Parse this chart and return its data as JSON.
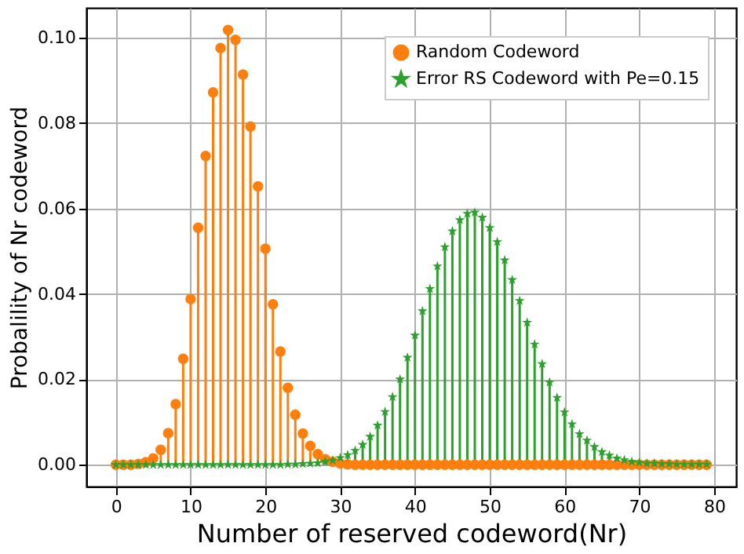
{
  "chart_data": {
    "type": "lollipop",
    "xlabel": "Number of reserved codeword(Nr)",
    "ylabel": "Probalility of Nr codeword",
    "x": [
      0,
      1,
      2,
      3,
      4,
      5,
      6,
      7,
      8,
      9,
      10,
      11,
      12,
      13,
      14,
      15,
      16,
      17,
      18,
      19,
      20,
      21,
      22,
      23,
      24,
      25,
      26,
      27,
      28,
      29,
      30,
      31,
      32,
      33,
      34,
      35,
      36,
      37,
      38,
      39,
      40,
      41,
      42,
      43,
      44,
      45,
      46,
      47,
      48,
      49,
      50,
      51,
      52,
      53,
      54,
      55,
      56,
      57,
      58,
      59,
      60,
      61,
      62,
      63,
      64,
      65,
      66,
      67,
      68,
      69,
      70,
      71,
      72,
      73,
      74,
      75,
      76,
      77,
      78,
      79
    ],
    "series": [
      {
        "name": "Random Codeword",
        "color": "#ff7f0e",
        "marker": "circle",
        "values": [
          0,
          0,
          0,
          0.0002,
          0.0006,
          0.0015,
          0.0035,
          0.0074,
          0.0142,
          0.0248,
          0.0388,
          0.0555,
          0.0723,
          0.0872,
          0.0976,
          0.1018,
          0.0995,
          0.0914,
          0.0792,
          0.0652,
          0.0506,
          0.0376,
          0.0265,
          0.018,
          0.0117,
          0.0073,
          0.0044,
          0.0025,
          0.0013,
          0.0007,
          0.0003,
          0.0001,
          0,
          0,
          0,
          0,
          0,
          0,
          0,
          0,
          0,
          0,
          0,
          0,
          0,
          0,
          0,
          0,
          0,
          0,
          0,
          0,
          0,
          0,
          0,
          0,
          0,
          0,
          0,
          0,
          0,
          0,
          0,
          0,
          0,
          0,
          0,
          0,
          0,
          0,
          0,
          0,
          0,
          0,
          0,
          0,
          0,
          0,
          0,
          0
        ]
      },
      {
        "name": "Error RS Codeword with Pe=0.15",
        "color": "#2ca02c",
        "marker": "star",
        "values": [
          0,
          0,
          0,
          0,
          0,
          0,
          0,
          0,
          0,
          0,
          0,
          0,
          0,
          0,
          0,
          0,
          0,
          0,
          0,
          0,
          0,
          0,
          0,
          0.0001,
          0.0001,
          0.0002,
          0.0003,
          0.0004,
          0.0007,
          0.001,
          0.0016,
          0.0023,
          0.0033,
          0.0047,
          0.0066,
          0.0092,
          0.0124,
          0.0159,
          0.02,
          0.0251,
          0.0303,
          0.036,
          0.0412,
          0.0465,
          0.051,
          0.0547,
          0.0573,
          0.0588,
          0.0591,
          0.0579,
          0.0555,
          0.0522,
          0.0479,
          0.0433,
          0.0384,
          0.0333,
          0.0282,
          0.0236,
          0.0193,
          0.0157,
          0.0123,
          0.0095,
          0.0072,
          0.0057,
          0.0042,
          0.003,
          0.0022,
          0.0015,
          0.0011,
          0.0007,
          0.0005,
          0.0003,
          0.0003,
          0.0002,
          0.0002,
          0.0001,
          0.0001,
          0.0001,
          0.0001,
          0.0001
        ]
      }
    ],
    "xlim": [
      -3.95,
      82.95
    ],
    "xticks": [
      0,
      10,
      20,
      30,
      40,
      50,
      60,
      70,
      80
    ],
    "ylim": [
      -0.0051,
      0.107
    ],
    "yticks": [
      {
        "value": 0,
        "label": "0.00"
      },
      {
        "value": 0.02,
        "label": "0.02"
      },
      {
        "value": 0.04,
        "label": "0.04"
      },
      {
        "value": 0.06,
        "label": "0.06"
      },
      {
        "value": 0.08,
        "label": "0.08"
      },
      {
        "value": 0.1,
        "label": "0.10"
      }
    ],
    "grid": true,
    "legend": "top right"
  }
}
